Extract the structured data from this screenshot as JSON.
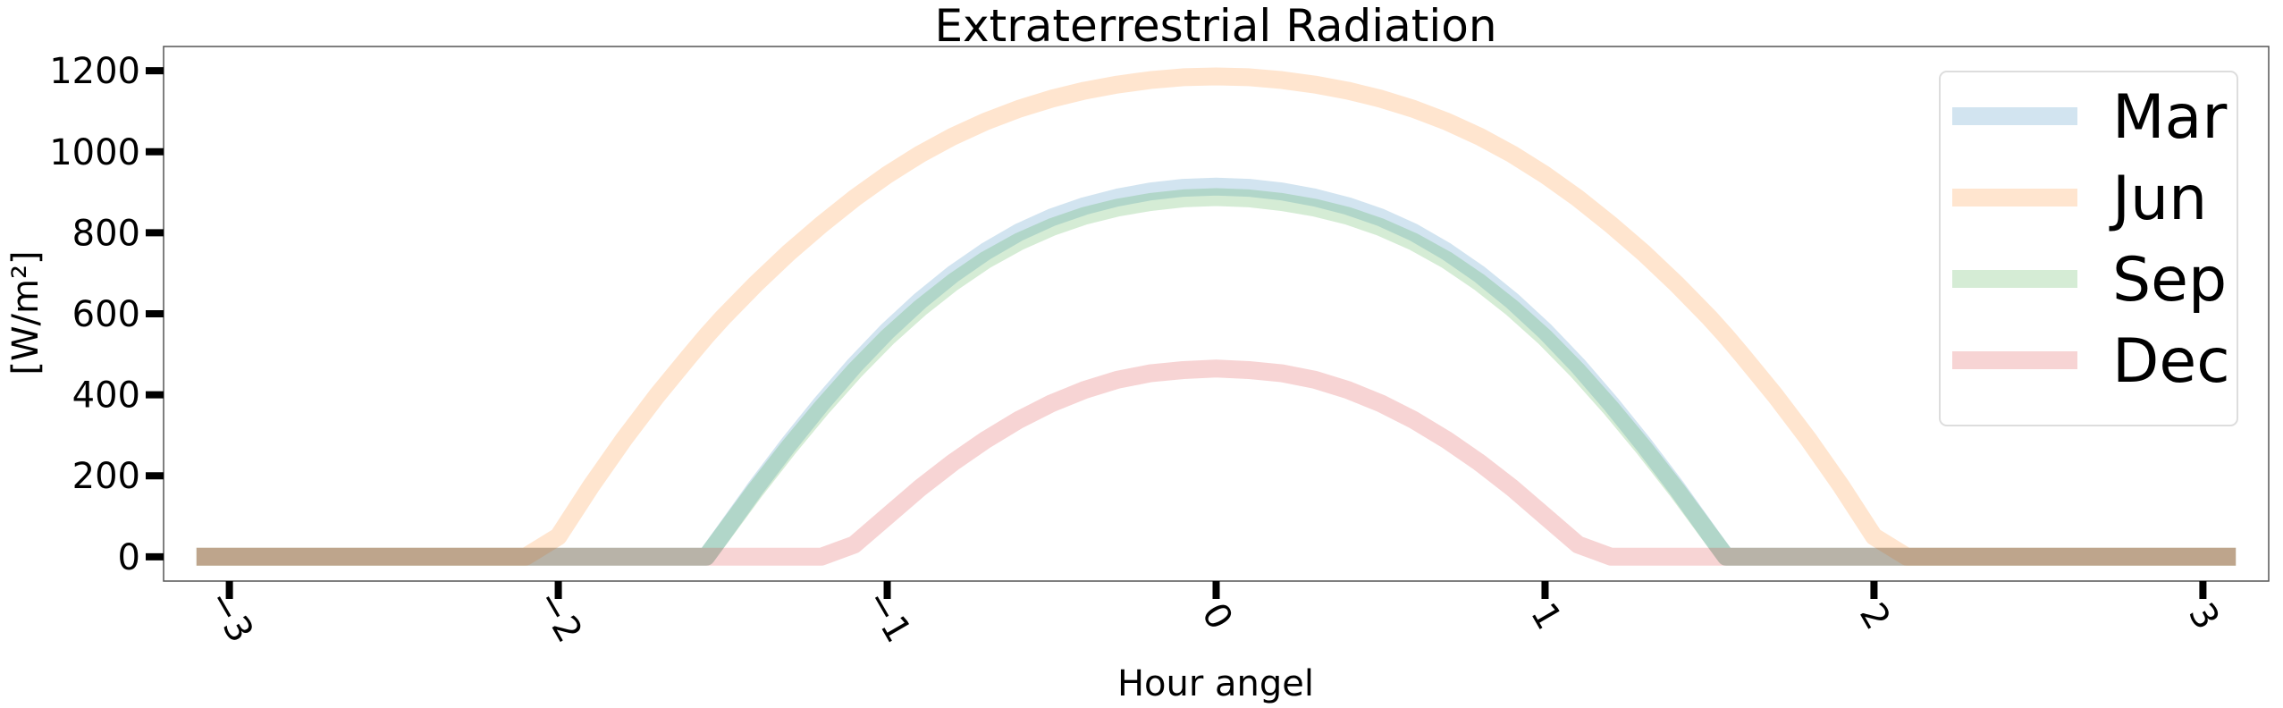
{
  "chart_data": {
    "type": "line",
    "title": "Extraterrestrial Radiation",
    "xlabel": "Hour angel",
    "ylabel": "[W/m²]",
    "xlim": [
      -3.2,
      3.2
    ],
    "ylim": [
      -60,
      1260
    ],
    "xticks": [
      -3,
      -2,
      -1,
      0,
      1,
      2,
      3
    ],
    "xtick_labels": [
      "−3",
      "−2",
      "−1",
      "0",
      "1",
      "2",
      "3"
    ],
    "xtick_rotation": -60,
    "yticks": [
      0,
      200,
      400,
      600,
      800,
      1000,
      1200
    ],
    "ytick_labels": [
      "0",
      "200",
      "400",
      "600",
      "800",
      "1000",
      "1200"
    ],
    "grid": false,
    "legend_position": "top-right",
    "x": [
      -3.1,
      -2.9,
      -2.7,
      -2.5,
      -2.3,
      -2.1,
      -2.0,
      -1.9,
      -1.8,
      -1.7,
      -1.6,
      -1.55,
      -1.5,
      -1.4,
      -1.3,
      -1.2,
      -1.1,
      -1.0,
      -0.9,
      -0.8,
      -0.7,
      -0.6,
      -0.5,
      -0.4,
      -0.3,
      -0.2,
      -0.1,
      0.0,
      0.1,
      0.2,
      0.3,
      0.4,
      0.5,
      0.6,
      0.7,
      0.8,
      0.9,
      1.0,
      1.1,
      1.2,
      1.3,
      1.4,
      1.5,
      1.55,
      1.6,
      1.7,
      1.8,
      1.9,
      2.0,
      2.1,
      2.3,
      2.5,
      2.7,
      2.9,
      3.1
    ],
    "series": [
      {
        "name": "Mar",
        "color": "#1f77b4",
        "values": [
          0,
          0,
          0,
          0,
          0,
          0,
          0,
          0,
          0,
          0,
          0,
          0,
          56,
          170,
          277,
          378,
          472,
          557,
          632,
          698,
          754,
          801,
          838,
          866,
          887,
          902,
          911,
          914,
          911,
          902,
          887,
          866,
          838,
          801,
          754,
          698,
          632,
          557,
          472,
          378,
          277,
          170,
          56,
          0,
          0,
          0,
          0,
          0,
          0,
          0,
          0,
          0,
          0,
          0,
          0
        ]
      },
      {
        "name": "Jun",
        "color": "#ff7f0e",
        "values": [
          0,
          0,
          0,
          0,
          0,
          0,
          50,
          175,
          291,
          398,
          497,
          545,
          590,
          673,
          750,
          820,
          885,
          943,
          994,
          1038,
          1075,
          1106,
          1131,
          1151,
          1166,
          1177,
          1184,
          1186,
          1184,
          1177,
          1166,
          1151,
          1131,
          1106,
          1075,
          1038,
          994,
          943,
          885,
          820,
          750,
          673,
          590,
          545,
          497,
          398,
          291,
          175,
          50,
          0,
          0,
          0,
          0,
          0,
          0
        ]
      },
      {
        "name": "Sep",
        "color": "#2ca02c",
        "values": [
          0,
          0,
          0,
          0,
          0,
          0,
          0,
          0,
          0,
          0,
          0,
          0,
          55,
          165,
          269,
          367,
          458,
          541,
          614,
          678,
          733,
          778,
          814,
          842,
          862,
          876,
          885,
          888,
          885,
          876,
          862,
          842,
          814,
          778,
          733,
          678,
          614,
          541,
          458,
          367,
          269,
          165,
          55,
          0,
          0,
          0,
          0,
          0,
          0,
          0,
          0,
          0,
          0,
          0,
          0
        ]
      },
      {
        "name": "Dec",
        "color": "#d62728",
        "values": [
          0,
          0,
          0,
          0,
          0,
          0,
          0,
          0,
          0,
          0,
          0,
          0,
          0,
          0,
          0,
          0,
          30,
          100,
          170,
          233,
          289,
          338,
          379,
          412,
          437,
          453,
          461,
          465,
          461,
          453,
          437,
          412,
          379,
          338,
          289,
          233,
          170,
          100,
          30,
          0,
          0,
          0,
          0,
          0,
          0,
          0,
          0,
          0,
          0,
          0,
          0,
          0,
          0,
          0,
          0
        ]
      }
    ]
  }
}
